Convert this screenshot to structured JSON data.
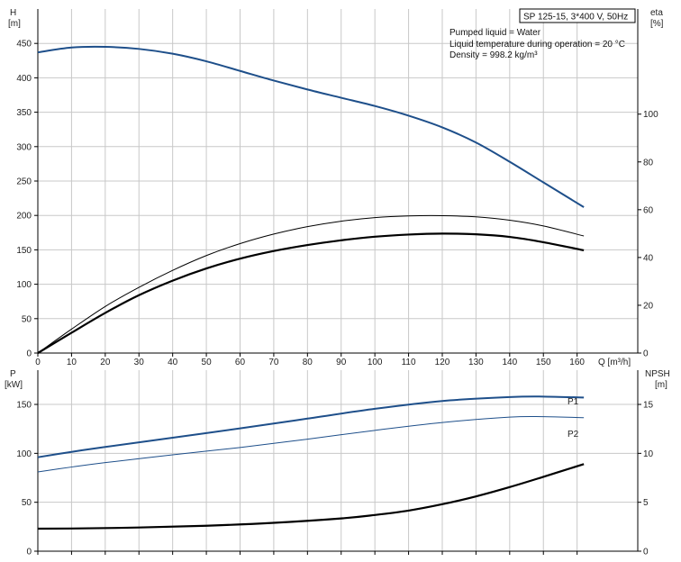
{
  "chart_data": [
    {
      "type": "line",
      "name": "top",
      "title_box": "SP 125-15, 3*400 V, 50Hz",
      "info": [
        "Pumped liquid = Water",
        "Liquid temperature during operation = 20 °C",
        "Density = 998.2 kg/m³"
      ],
      "y_left": {
        "label": [
          "H",
          "[m]"
        ],
        "ticks": [
          0,
          50,
          100,
          150,
          200,
          250,
          300,
          350,
          400,
          450
        ]
      },
      "y_right": {
        "label": [
          "eta",
          "[%]"
        ],
        "ticks": [
          0,
          20,
          40,
          60,
          80,
          100
        ]
      },
      "x_label": "Q [m³/h]",
      "x_ticks": [
        0,
        10,
        20,
        30,
        40,
        50,
        60,
        70,
        80,
        90,
        100,
        110,
        120,
        130,
        140,
        150,
        160
      ],
      "xlim": [
        0,
        178
      ],
      "ylim_left": [
        0,
        500
      ],
      "ylim_right": [
        0,
        144
      ],
      "grid": true,
      "series": [
        {
          "color": "#1e4f8a",
          "width": 2,
          "axis": "left",
          "points": [
            [
              0,
              437
            ],
            [
              10,
              444
            ],
            [
              20,
              445
            ],
            [
              30,
              442
            ],
            [
              40,
              435
            ],
            [
              50,
              424
            ],
            [
              60,
              410
            ],
            [
              70,
              396
            ],
            [
              80,
              383
            ],
            [
              90,
              371
            ],
            [
              100,
              359
            ],
            [
              110,
              345
            ],
            [
              120,
              328
            ],
            [
              130,
              306
            ],
            [
              140,
              278
            ],
            [
              150,
              248
            ],
            [
              162,
              212
            ]
          ]
        },
        {
          "color": "#000000",
          "width": 1,
          "axis": "right",
          "points": [
            [
              0,
              0
            ],
            [
              10,
              10
            ],
            [
              20,
              19.5
            ],
            [
              30,
              27.5
            ],
            [
              40,
              34.6
            ],
            [
              50,
              40.8
            ],
            [
              60,
              45.8
            ],
            [
              70,
              49.8
            ],
            [
              80,
              52.9
            ],
            [
              90,
              55.2
            ],
            [
              100,
              56.7
            ],
            [
              110,
              57.4
            ],
            [
              120,
              57.5
            ],
            [
              130,
              57
            ],
            [
              140,
              55.6
            ],
            [
              150,
              53.2
            ],
            [
              162,
              49
            ]
          ]
        },
        {
          "color": "#000000",
          "width": 2.2,
          "axis": "right",
          "points": [
            [
              0,
              0
            ],
            [
              10,
              8.5
            ],
            [
              20,
              16.8
            ],
            [
              30,
              24.2
            ],
            [
              40,
              30.3
            ],
            [
              50,
              35.4
            ],
            [
              60,
              39.5
            ],
            [
              70,
              42.7
            ],
            [
              80,
              45.2
            ],
            [
              90,
              47.2
            ],
            [
              100,
              48.7
            ],
            [
              110,
              49.6
            ],
            [
              120,
              50
            ],
            [
              130,
              49.7
            ],
            [
              140,
              48.6
            ],
            [
              150,
              46.4
            ],
            [
              162,
              43
            ]
          ]
        }
      ]
    },
    {
      "type": "line",
      "name": "bottom",
      "y_left": {
        "label": [
          "P",
          "[kW]"
        ],
        "ticks": [
          0,
          50,
          100,
          150
        ]
      },
      "y_right": {
        "label": [
          "NPSH",
          "[m]"
        ],
        "ticks": [
          0,
          5,
          10,
          15
        ]
      },
      "xlim": [
        0,
        178
      ],
      "ylim_left": [
        0,
        185
      ],
      "ylim_right": [
        0,
        18.5
      ],
      "grid": true,
      "series": [
        {
          "name": "P1",
          "color": "#1e4f8a",
          "width": 2,
          "axis": "left",
          "points": [
            [
              0,
              96
            ],
            [
              10,
              101.5
            ],
            [
              20,
              106.5
            ],
            [
              40,
              116
            ],
            [
              60,
              125.5
            ],
            [
              80,
              135.5
            ],
            [
              100,
              145.5
            ],
            [
              120,
              153.5
            ],
            [
              140,
              157.5
            ],
            [
              150,
              158
            ],
            [
              162,
              157
            ]
          ]
        },
        {
          "name": "P2",
          "color": "#1e4f8a",
          "width": 1,
          "axis": "left",
          "points": [
            [
              0,
              81
            ],
            [
              10,
              86
            ],
            [
              20,
              90.5
            ],
            [
              40,
              98.5
            ],
            [
              60,
              106
            ],
            [
              80,
              114.5
            ],
            [
              100,
              123.5
            ],
            [
              120,
              131.5
            ],
            [
              140,
              137
            ],
            [
              150,
              137.5
            ],
            [
              162,
              136.5
            ]
          ]
        },
        {
          "color": "#000000",
          "width": 2.2,
          "axis": "right",
          "points": [
            [
              0,
              2.3
            ],
            [
              10,
              2.32
            ],
            [
              30,
              2.42
            ],
            [
              50,
              2.6
            ],
            [
              70,
              2.9
            ],
            [
              90,
              3.35
            ],
            [
              100,
              3.7
            ],
            [
              110,
              4.15
            ],
            [
              120,
              4.8
            ],
            [
              130,
              5.6
            ],
            [
              140,
              6.55
            ],
            [
              150,
              7.6
            ],
            [
              162,
              8.9
            ]
          ]
        }
      ]
    }
  ]
}
